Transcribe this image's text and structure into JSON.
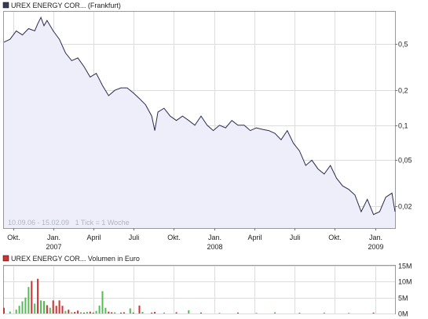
{
  "chart_data": [
    {
      "type": "area",
      "legend": {
        "label": "UREX ENERGY COR... (Frankfurt)",
        "color": "#3a3a5a",
        "placement": "top-left"
      },
      "note": "10.09.06 - 15.02.09   1 Tick = 1 Woche",
      "y_scale": "log",
      "ylim": [
        0.013,
        0.95
      ],
      "y_ticks": [
        {
          "value": 0.5,
          "label": "0,5"
        },
        {
          "value": 0.2,
          "label": "0,2"
        },
        {
          "value": 0.1,
          "label": "0,1"
        },
        {
          "value": 0.05,
          "label": "0,05"
        },
        {
          "value": 0.02,
          "label": "0,02"
        }
      ],
      "x_ticks": [
        {
          "date": "2006-10-01",
          "label": "Okt."
        },
        {
          "date": "2007-01-01",
          "label": "Jan.",
          "year": "2007"
        },
        {
          "date": "2007-04-01",
          "label": "April"
        },
        {
          "date": "2007-07-01",
          "label": "Juli"
        },
        {
          "date": "2007-10-01",
          "label": "Okt."
        },
        {
          "date": "2008-01-01",
          "label": "Jan.",
          "year": "2008"
        },
        {
          "date": "2008-04-01",
          "label": "April"
        },
        {
          "date": "2008-07-01",
          "label": "Juli"
        },
        {
          "date": "2008-10-01",
          "label": "Okt."
        },
        {
          "date": "2009-01-01",
          "label": "Jan.",
          "year": "2009"
        }
      ],
      "xlim": [
        "2006-09-10",
        "2009-02-15"
      ],
      "grid": true,
      "line_color": "#2b2b4a",
      "fill_color": "#eeeefb",
      "series": [
        {
          "x": [
            "2006-09-10",
            "2006-09-24",
            "2006-10-08",
            "2006-10-22",
            "2006-11-05",
            "2006-11-19",
            "2006-11-26",
            "2006-12-03",
            "2006-12-10",
            "2006-12-17",
            "2006-12-31",
            "2007-01-14",
            "2007-01-28",
            "2007-02-11",
            "2007-02-25",
            "2007-03-11",
            "2007-03-25",
            "2007-04-08",
            "2007-04-22",
            "2007-05-06",
            "2007-05-20",
            "2007-06-03",
            "2007-06-17",
            "2007-07-01",
            "2007-07-15",
            "2007-07-29",
            "2007-08-12",
            "2007-08-19",
            "2007-08-26",
            "2007-09-09",
            "2007-09-23",
            "2007-10-07",
            "2007-10-21",
            "2007-11-04",
            "2007-11-18",
            "2007-12-02",
            "2007-12-16",
            "2007-12-30",
            "2008-01-13",
            "2008-01-27",
            "2008-02-10",
            "2008-02-24",
            "2008-03-09",
            "2008-03-23",
            "2008-04-06",
            "2008-04-20",
            "2008-05-04",
            "2008-05-18",
            "2008-06-01",
            "2008-06-15",
            "2008-06-29",
            "2008-07-13",
            "2008-07-27",
            "2008-08-10",
            "2008-08-24",
            "2008-09-07",
            "2008-09-21",
            "2008-10-05",
            "2008-10-19",
            "2008-11-02",
            "2008-11-16",
            "2008-11-30",
            "2008-12-14",
            "2008-12-28",
            "2009-01-11",
            "2009-01-25",
            "2009-02-08",
            "2009-02-15"
          ],
          "y": [
            0.52,
            0.55,
            0.65,
            0.6,
            0.68,
            0.65,
            0.75,
            0.85,
            0.72,
            0.8,
            0.65,
            0.55,
            0.42,
            0.36,
            0.38,
            0.32,
            0.26,
            0.28,
            0.22,
            0.18,
            0.2,
            0.21,
            0.21,
            0.19,
            0.17,
            0.15,
            0.12,
            0.09,
            0.13,
            0.14,
            0.12,
            0.11,
            0.12,
            0.11,
            0.1,
            0.12,
            0.1,
            0.09,
            0.1,
            0.095,
            0.11,
            0.1,
            0.1,
            0.09,
            0.095,
            0.092,
            0.09,
            0.085,
            0.075,
            0.09,
            0.07,
            0.06,
            0.045,
            0.05,
            0.042,
            0.038,
            0.045,
            0.035,
            0.03,
            0.028,
            0.025,
            0.018,
            0.023,
            0.017,
            0.018,
            0.024,
            0.026,
            0.018
          ]
        }
      ]
    },
    {
      "type": "bar",
      "legend": {
        "label": "UREX ENERGY COR... Volumen in Euro",
        "color": "#cc3333",
        "placement": "top-left"
      },
      "ylim": [
        0,
        15000000
      ],
      "y_ticks": [
        {
          "value": 0,
          "label": "0M"
        },
        {
          "value": 5000000,
          "label": "5M"
        },
        {
          "value": 10000000,
          "label": "10M"
        },
        {
          "value": 15000000,
          "label": "15M"
        }
      ],
      "grid": true,
      "up_color": "#55bb55",
      "down_color": "#cc3333",
      "bars": [
        {
          "x": "2006-09-10",
          "v": 1800000,
          "dir": "down"
        },
        {
          "x": "2006-09-24",
          "v": 600000,
          "dir": "up"
        },
        {
          "x": "2006-10-08",
          "v": 1200000,
          "dir": "up"
        },
        {
          "x": "2006-10-15",
          "v": 2400000,
          "dir": "up"
        },
        {
          "x": "2006-10-22",
          "v": 3800000,
          "dir": "up"
        },
        {
          "x": "2006-10-29",
          "v": 5000000,
          "dir": "up"
        },
        {
          "x": "2006-11-05",
          "v": 8300000,
          "dir": "up"
        },
        {
          "x": "2006-11-12",
          "v": 10200000,
          "dir": "down"
        },
        {
          "x": "2006-11-19",
          "v": 3100000,
          "dir": "up"
        },
        {
          "x": "2006-11-26",
          "v": 10900000,
          "dir": "down"
        },
        {
          "x": "2006-12-03",
          "v": 4100000,
          "dir": "up"
        },
        {
          "x": "2006-12-10",
          "v": 3900000,
          "dir": "up"
        },
        {
          "x": "2006-12-17",
          "v": 2600000,
          "dir": "down"
        },
        {
          "x": "2006-12-24",
          "v": 1800000,
          "dir": "up"
        },
        {
          "x": "2006-12-31",
          "v": 4100000,
          "dir": "down"
        },
        {
          "x": "2007-01-07",
          "v": 2400000,
          "dir": "down"
        },
        {
          "x": "2007-01-14",
          "v": 4100000,
          "dir": "down"
        },
        {
          "x": "2007-01-21",
          "v": 2400000,
          "dir": "down"
        },
        {
          "x": "2007-01-28",
          "v": 800000,
          "dir": "up"
        },
        {
          "x": "2007-02-04",
          "v": 1200000,
          "dir": "down"
        },
        {
          "x": "2007-02-11",
          "v": 400000,
          "dir": "up"
        },
        {
          "x": "2007-02-18",
          "v": 500000,
          "dir": "down"
        },
        {
          "x": "2007-02-25",
          "v": 900000,
          "dir": "down"
        },
        {
          "x": "2007-03-04",
          "v": 400000,
          "dir": "up"
        },
        {
          "x": "2007-03-11",
          "v": 300000,
          "dir": "down"
        },
        {
          "x": "2007-03-18",
          "v": 500000,
          "dir": "up"
        },
        {
          "x": "2007-03-25",
          "v": 600000,
          "dir": "down"
        },
        {
          "x": "2007-04-01",
          "v": 300000,
          "dir": "down"
        },
        {
          "x": "2007-04-08",
          "v": 800000,
          "dir": "up"
        },
        {
          "x": "2007-04-15",
          "v": 2500000,
          "dir": "up"
        },
        {
          "x": "2007-04-22",
          "v": 7000000,
          "dir": "up"
        },
        {
          "x": "2007-04-29",
          "v": 1800000,
          "dir": "up"
        },
        {
          "x": "2007-05-06",
          "v": 600000,
          "dir": "down"
        },
        {
          "x": "2007-05-13",
          "v": 400000,
          "dir": "down"
        },
        {
          "x": "2007-05-20",
          "v": 400000,
          "dir": "up"
        },
        {
          "x": "2007-06-03",
          "v": 300000,
          "dir": "down"
        },
        {
          "x": "2007-06-10",
          "v": 400000,
          "dir": "down"
        },
        {
          "x": "2007-06-24",
          "v": 1600000,
          "dir": "up"
        },
        {
          "x": "2007-07-01",
          "v": 300000,
          "dir": "down"
        },
        {
          "x": "2007-07-15",
          "v": 2500000,
          "dir": "down"
        },
        {
          "x": "2007-07-22",
          "v": 500000,
          "dir": "up"
        },
        {
          "x": "2007-08-12",
          "v": 300000,
          "dir": "down"
        },
        {
          "x": "2007-08-19",
          "v": 500000,
          "dir": "down"
        },
        {
          "x": "2007-09-09",
          "v": 300000,
          "dir": "up"
        },
        {
          "x": "2007-10-07",
          "v": 400000,
          "dir": "down"
        },
        {
          "x": "2007-11-04",
          "v": 1000000,
          "dir": "up"
        },
        {
          "x": "2007-12-02",
          "v": 300000,
          "dir": "down"
        },
        {
          "x": "2008-01-13",
          "v": 200000,
          "dir": "up"
        },
        {
          "x": "2008-02-24",
          "v": 300000,
          "dir": "down"
        },
        {
          "x": "2008-04-06",
          "v": 200000,
          "dir": "up"
        },
        {
          "x": "2008-05-18",
          "v": 400000,
          "dir": "up"
        },
        {
          "x": "2008-07-13",
          "v": 200000,
          "dir": "down"
        },
        {
          "x": "2008-09-07",
          "v": 300000,
          "dir": "up"
        },
        {
          "x": "2008-11-02",
          "v": 200000,
          "dir": "up"
        },
        {
          "x": "2008-12-28",
          "v": 300000,
          "dir": "down"
        }
      ]
    }
  ]
}
